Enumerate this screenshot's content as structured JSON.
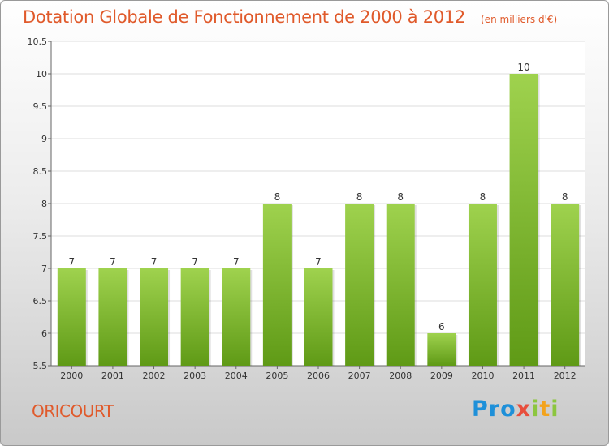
{
  "chart_data": {
    "type": "bar",
    "title": "Dotation Globale de Fonctionnement de 2000 à 2012",
    "subtitle": "(en milliers d'€)",
    "categories": [
      "2000",
      "2001",
      "2002",
      "2003",
      "2004",
      "2005",
      "2006",
      "2007",
      "2008",
      "2009",
      "2010",
      "2011",
      "2012"
    ],
    "values": [
      7,
      7,
      7,
      7,
      7,
      8,
      7,
      8,
      8,
      6,
      8,
      10,
      8
    ],
    "data_labels": [
      "7",
      "7",
      "7",
      "7",
      "7",
      "8",
      "7",
      "8",
      "8",
      "6",
      "8",
      "10",
      "8"
    ],
    "ylim": [
      5.5,
      10.5
    ],
    "yticks": [
      "5.5",
      "6",
      "6.5",
      "7",
      "7.5",
      "8",
      "8.5",
      "9",
      "9.5",
      "10",
      "10.5"
    ],
    "grid": true,
    "legend": "none",
    "colors": {
      "bar_top": "#9fd24e",
      "bar_bottom": "#5f9a16",
      "grid": "#dddddd"
    }
  },
  "footer": {
    "city": "ORICOURT",
    "logo": {
      "p1": "Pro",
      "p2": "x",
      "p3": "i",
      "p4": "t",
      "p5": "i"
    }
  }
}
